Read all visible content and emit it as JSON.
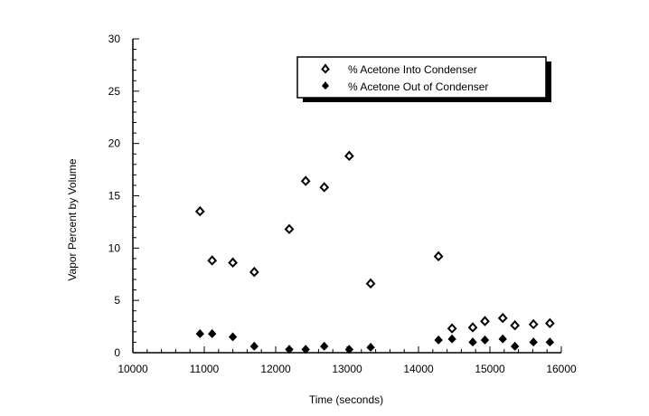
{
  "chart_data": {
    "type": "scatter",
    "title": "",
    "xlabel": "Time (seconds)",
    "ylabel": "Vapor Percent by Volume",
    "xlim": [
      10000,
      16000
    ],
    "ylim": [
      0,
      30
    ],
    "xticks": [
      "10000",
      "11000",
      "12000",
      "13000",
      "14000",
      "15000",
      "16000"
    ],
    "yticks": [
      "0",
      "5",
      "10",
      "15",
      "20",
      "25",
      "30"
    ],
    "grid": false,
    "legend_position": "top-right",
    "series": [
      {
        "name": "% Acetone Into Condenser",
        "marker": "open-diamond",
        "x": [
          10940,
          11110,
          11400,
          11700,
          12190,
          12420,
          12680,
          13030,
          13330,
          14280,
          14470,
          14760,
          14930,
          15180,
          15350,
          15610,
          15840
        ],
        "y": [
          13.5,
          8.8,
          8.6,
          7.7,
          11.8,
          16.4,
          15.8,
          18.8,
          6.6,
          9.2,
          2.3,
          2.4,
          3.0,
          3.3,
          2.6,
          2.7,
          2.8
        ]
      },
      {
        "name": "% Acetone Out of Condenser",
        "marker": "filled-diamond",
        "x": [
          10940,
          11110,
          11400,
          11700,
          12190,
          12420,
          12680,
          13030,
          13330,
          14280,
          14470,
          14760,
          14930,
          15180,
          15350,
          15610,
          15840
        ],
        "y": [
          1.8,
          1.8,
          1.5,
          0.6,
          0.3,
          0.3,
          0.6,
          0.3,
          0.5,
          1.2,
          1.3,
          1.0,
          1.2,
          1.3,
          0.6,
          1.0,
          1.0
        ]
      }
    ]
  }
}
